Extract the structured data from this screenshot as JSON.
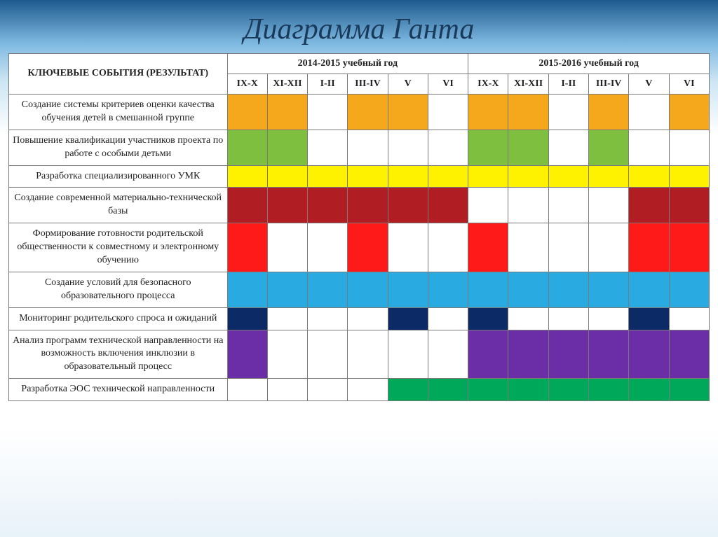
{
  "title": "Диаграмма Ганта",
  "title_fontsize": 42,
  "title_color": "#1a3a5c",
  "header": {
    "events_label": "КЛЮЧЕВЫЕ СОБЫТИЯ (РЕЗУЛЬТАТ)",
    "year_groups": [
      {
        "label": "2014-2015 учебный год",
        "span": 6
      },
      {
        "label": "2015-2016 учебный год",
        "span": 6
      }
    ],
    "months": [
      "IX-X",
      "XI-XII",
      "I-II",
      "III-IV",
      "V",
      "VI",
      "IX-X",
      "XI-XII",
      "I-II",
      "III-IV",
      "V",
      "VI"
    ]
  },
  "colors": {
    "orange": "#f5a81c",
    "green": "#7fbf3f",
    "yellow": "#fff200",
    "darkred": "#b01d22",
    "red": "#ff1a1a",
    "cyan": "#29aae1",
    "navy": "#0b2a66",
    "purple": "#6b2ea6",
    "emerald": "#00a859",
    "blank": "#ffffff"
  },
  "table": {
    "border_color": "#7a7a7a",
    "background": "#ffffff",
    "font_family": "Georgia, serif",
    "header_fontsize": 14,
    "cell_fontsize": 14
  },
  "rows": [
    {
      "label": "Создание системы критериев оценки качества обучения детей в смешанной группе",
      "cells": [
        "orange",
        "orange",
        "blank",
        "orange",
        "orange",
        "blank",
        "orange",
        "orange",
        "blank",
        "orange",
        "blank",
        "orange"
      ]
    },
    {
      "label": "Повышение квалификации участников проекта по работе с особыми детьми",
      "cells": [
        "green",
        "green",
        "blank",
        "blank",
        "blank",
        "blank",
        "green",
        "green",
        "blank",
        "green",
        "blank",
        "blank"
      ]
    },
    {
      "label": "Разработка специализированного УМК",
      "cells": [
        "yellow",
        "yellow",
        "yellow",
        "yellow",
        "yellow",
        "yellow",
        "yellow",
        "yellow",
        "yellow",
        "yellow",
        "yellow",
        "yellow"
      ]
    },
    {
      "label": "Создание современной материально-технической базы",
      "cells": [
        "darkred",
        "darkred",
        "darkred",
        "darkred",
        "darkred",
        "darkred",
        "blank",
        "blank",
        "blank",
        "blank",
        "darkred",
        "darkred"
      ]
    },
    {
      "label": "Формирование готовности родительской общественности к совместному и электронному обучению",
      "cells": [
        "red",
        "blank",
        "blank",
        "red",
        "blank",
        "blank",
        "red",
        "blank",
        "blank",
        "blank",
        "red",
        "red"
      ]
    },
    {
      "label": "Создание условий для безопасного образовательного процесса",
      "cells": [
        "cyan",
        "cyan",
        "cyan",
        "cyan",
        "cyan",
        "cyan",
        "cyan",
        "cyan",
        "cyan",
        "cyan",
        "cyan",
        "cyan"
      ]
    },
    {
      "label": "Мониторинг родительского спроса и ожиданий",
      "cells": [
        "navy",
        "blank",
        "blank",
        "blank",
        "navy",
        "blank",
        "navy",
        "blank",
        "blank",
        "blank",
        "navy",
        "blank"
      ]
    },
    {
      "label": "Анализ программ технической направленности на возможность включения инклюзии в образовательный процесс",
      "cells": [
        "purple",
        "blank",
        "blank",
        "blank",
        "blank",
        "blank",
        "purple",
        "purple",
        "purple",
        "purple",
        "purple",
        "purple"
      ]
    },
    {
      "label": "Разработка ЭОС технической направленности",
      "cells": [
        "blank",
        "blank",
        "blank",
        "blank",
        "emerald",
        "emerald",
        "emerald",
        "emerald",
        "emerald",
        "emerald",
        "emerald",
        "emerald"
      ]
    }
  ]
}
